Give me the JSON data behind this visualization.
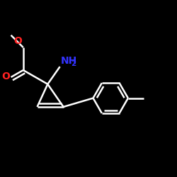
{
  "background_color": "#000000",
  "bond_color": "#ffffff",
  "bond_width": 1.8,
  "nh2_color": "#3333ff",
  "o_color": "#ff2222",
  "figsize": [
    2.5,
    2.5
  ],
  "dpi": 100,
  "xlim": [
    0.0,
    1.0
  ],
  "ylim": [
    0.05,
    1.0
  ]
}
